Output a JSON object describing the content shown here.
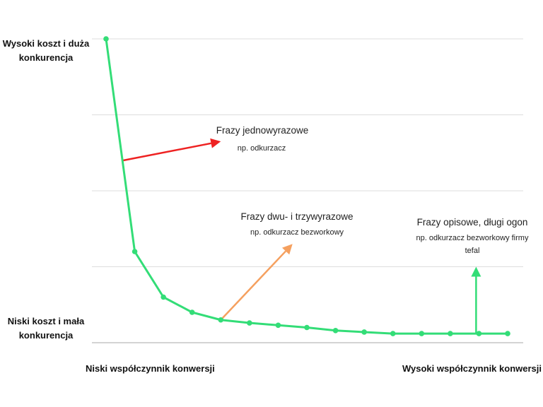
{
  "chart_data": {
    "type": "line",
    "title": "",
    "y_top_label": "Wysoki koszt i duża konkurencja",
    "y_bottom_label": "Niski koszt i mała konkurencja",
    "x_left_label": "Niski współczynnik konwersji",
    "x_right_label": "Wysoki współczynnik konwersji",
    "ylim": [
      0,
      4
    ],
    "xlim": [
      0,
      14
    ],
    "grid": true,
    "series": [
      {
        "color": "#33dd77",
        "x": [
          0,
          1,
          2,
          3,
          4,
          5,
          6,
          7,
          8,
          9,
          10,
          11,
          12,
          13,
          14
        ],
        "values": [
          4.0,
          1.2,
          0.6,
          0.4,
          0.3,
          0.26,
          0.23,
          0.2,
          0.16,
          0.14,
          0.12,
          0.12,
          0.12,
          0.12,
          0.12
        ]
      }
    ],
    "annotations": [
      {
        "title": "Frazy jednowyrazowe",
        "subtitle": "np. odkurzacz",
        "arrow_color": "#ee2222",
        "arrow_from": [
          0.6,
          2.4
        ],
        "arrow_to": [
          4.0,
          2.65
        ]
      },
      {
        "title": "Frazy dwu- i trzywyrazowe",
        "subtitle": "np. odkurzacz bezworkowy",
        "arrow_color": "#f5a05f",
        "arrow_from": [
          4.0,
          0.3
        ],
        "arrow_to": [
          6.5,
          1.3
        ]
      },
      {
        "title": "Frazy opisowe, długi ogon",
        "subtitle": "np. odkurzacz bezworkowy firmy tefal",
        "arrow_color": "#33dd77",
        "arrow_from": [
          12.9,
          0.12
        ],
        "arrow_to": [
          12.9,
          1.0
        ]
      }
    ]
  }
}
